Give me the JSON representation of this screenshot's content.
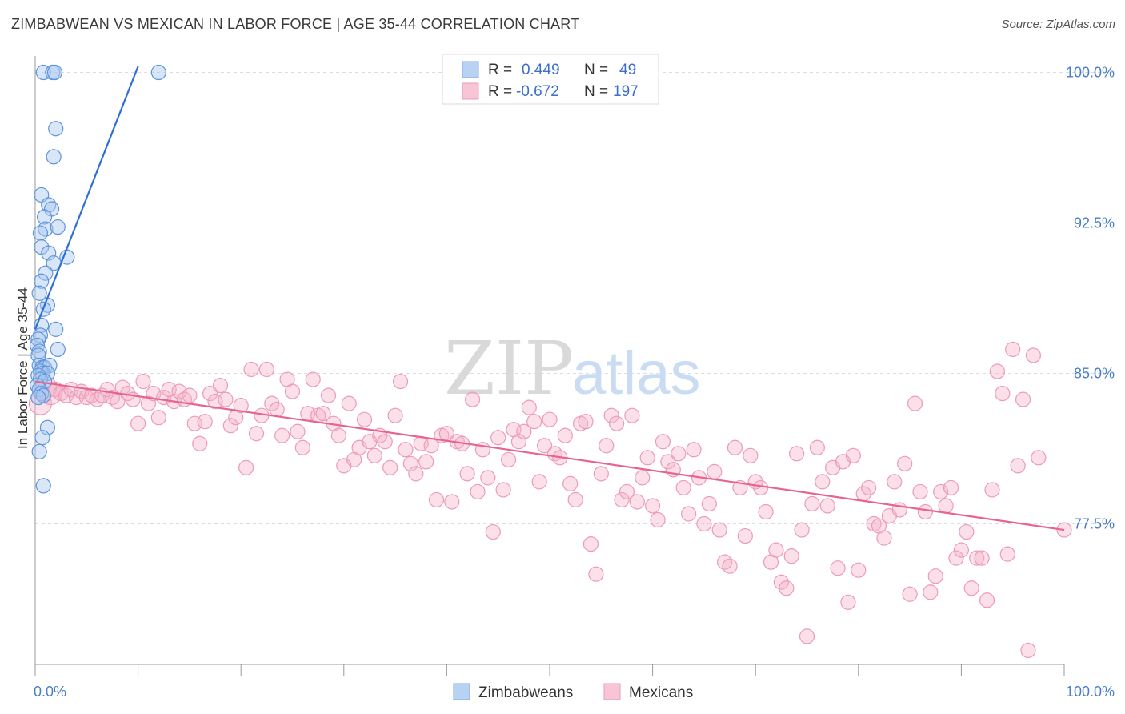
{
  "chart_data": {
    "type": "scatter",
    "title": "ZIMBABWEAN VS MEXICAN IN LABOR FORCE | AGE 35-44 CORRELATION CHART",
    "source": "Source: ZipAtlas.com",
    "ylabel": "In Labor Force | Age 35-44",
    "xlim": [
      0,
      100
    ],
    "ylim": [
      70.5,
      100.5
    ],
    "x_tick_labels": [
      "0.0%",
      "100.0%"
    ],
    "y_ticks": [
      {
        "value": 100.0,
        "label": "100.0%"
      },
      {
        "value": 92.5,
        "label": "92.5%"
      },
      {
        "value": 85.0,
        "label": "85.0%"
      },
      {
        "value": 77.5,
        "label": "77.5%"
      }
    ],
    "watermark": {
      "zip": "ZIP",
      "atlas": "atlas"
    },
    "legend": {
      "r_label": "R =",
      "n_label": "N =",
      "rows": [
        {
          "r": "0.449",
          "n": "49"
        },
        {
          "r": "-0.672",
          "n": "197"
        }
      ]
    },
    "series": [
      {
        "name": "Zimbabweans",
        "color": "#8ab6ec",
        "line_color": "#2f6fd1",
        "trend": {
          "x0": 0.0,
          "y0": 87.2,
          "x1": 10.0,
          "y1": 100.3
        },
        "points": [
          [
            0.8,
            100.0
          ],
          [
            1.7,
            100.0
          ],
          [
            1.9,
            100.0
          ],
          [
            12.0,
            100.0
          ],
          [
            2.0,
            97.2
          ],
          [
            1.8,
            95.8
          ],
          [
            0.6,
            93.9
          ],
          [
            1.3,
            93.4
          ],
          [
            1.6,
            93.2
          ],
          [
            0.9,
            92.8
          ],
          [
            1.0,
            92.2
          ],
          [
            2.2,
            92.3
          ],
          [
            0.5,
            92.0
          ],
          [
            0.6,
            91.3
          ],
          [
            1.3,
            91.0
          ],
          [
            3.1,
            90.8
          ],
          [
            1.8,
            90.5
          ],
          [
            1.0,
            90.0
          ],
          [
            0.6,
            89.6
          ],
          [
            0.4,
            89.0
          ],
          [
            1.2,
            88.4
          ],
          [
            0.8,
            88.2
          ],
          [
            0.6,
            87.4
          ],
          [
            2.0,
            87.2
          ],
          [
            0.5,
            86.9
          ],
          [
            0.3,
            86.7
          ],
          [
            0.2,
            86.4
          ],
          [
            0.4,
            86.1
          ],
          [
            2.2,
            86.2
          ],
          [
            0.3,
            85.9
          ],
          [
            0.4,
            85.4
          ],
          [
            0.7,
            85.3
          ],
          [
            0.9,
            85.3
          ],
          [
            1.4,
            85.4
          ],
          [
            0.5,
            85.1
          ],
          [
            0.7,
            85.0
          ],
          [
            1.2,
            85.0
          ],
          [
            0.3,
            84.9
          ],
          [
            0.5,
            84.7
          ],
          [
            0.9,
            84.6
          ],
          [
            0.2,
            84.4
          ],
          [
            0.4,
            84.2
          ],
          [
            0.6,
            84.0
          ],
          [
            0.8,
            83.9
          ],
          [
            0.3,
            83.8
          ],
          [
            1.2,
            82.3
          ],
          [
            0.7,
            81.8
          ],
          [
            0.4,
            81.1
          ],
          [
            0.8,
            79.4
          ]
        ]
      },
      {
        "name": "Mexicans",
        "color": "#f2a6bf",
        "line_color": "#e8648e",
        "trend": {
          "x0": 0.0,
          "y0": 84.6,
          "x1": 100.0,
          "y1": 77.2
        },
        "points": [
          [
            0.5,
            83.5
          ],
          [
            1.0,
            84.3
          ],
          [
            1.5,
            84.0
          ],
          [
            2.0,
            84.2
          ],
          [
            2.5,
            84.0
          ],
          [
            3.0,
            83.9
          ],
          [
            3.5,
            84.2
          ],
          [
            4.0,
            83.8
          ],
          [
            4.5,
            84.1
          ],
          [
            5.0,
            83.8
          ],
          [
            5.5,
            83.9
          ],
          [
            6.0,
            83.7
          ],
          [
            6.5,
            83.9
          ],
          [
            7.0,
            84.2
          ],
          [
            7.5,
            83.8
          ],
          [
            8.0,
            83.6
          ],
          [
            8.5,
            84.3
          ],
          [
            9.0,
            84.0
          ],
          [
            9.5,
            83.7
          ],
          [
            10.0,
            82.5
          ],
          [
            10.5,
            84.6
          ],
          [
            11.0,
            83.5
          ],
          [
            11.5,
            84.0
          ],
          [
            12.0,
            82.8
          ],
          [
            12.5,
            83.8
          ],
          [
            13.0,
            84.2
          ],
          [
            13.5,
            83.6
          ],
          [
            14.0,
            84.1
          ],
          [
            14.5,
            83.7
          ],
          [
            15.0,
            83.9
          ],
          [
            15.5,
            82.5
          ],
          [
            16.0,
            81.5
          ],
          [
            16.5,
            82.6
          ],
          [
            17.0,
            84.0
          ],
          [
            17.5,
            83.6
          ],
          [
            18.0,
            84.4
          ],
          [
            18.5,
            83.7
          ],
          [
            19.0,
            82.4
          ],
          [
            19.5,
            82.8
          ],
          [
            20.0,
            83.4
          ],
          [
            20.5,
            80.3
          ],
          [
            21.0,
            85.2
          ],
          [
            21.5,
            82.0
          ],
          [
            22.0,
            82.9
          ],
          [
            22.5,
            85.2
          ],
          [
            23.0,
            83.5
          ],
          [
            23.5,
            83.2
          ],
          [
            24.0,
            81.9
          ],
          [
            24.5,
            84.7
          ],
          [
            25.0,
            84.1
          ],
          [
            25.5,
            82.1
          ],
          [
            26.0,
            81.3
          ],
          [
            26.5,
            83.0
          ],
          [
            27.0,
            84.7
          ],
          [
            27.5,
            82.9
          ],
          [
            28.0,
            83.0
          ],
          [
            28.5,
            83.9
          ],
          [
            29.0,
            82.5
          ],
          [
            29.5,
            81.9
          ],
          [
            30.0,
            80.4
          ],
          [
            30.5,
            83.5
          ],
          [
            31.0,
            80.7
          ],
          [
            31.5,
            81.3
          ],
          [
            32.0,
            82.7
          ],
          [
            32.5,
            81.6
          ],
          [
            33.0,
            80.9
          ],
          [
            33.5,
            81.9
          ],
          [
            34.0,
            81.6
          ],
          [
            34.5,
            80.3
          ],
          [
            35.0,
            82.9
          ],
          [
            35.5,
            84.6
          ],
          [
            36.0,
            81.2
          ],
          [
            36.5,
            80.5
          ],
          [
            37.0,
            80.0
          ],
          [
            37.5,
            81.5
          ],
          [
            38.0,
            80.6
          ],
          [
            38.5,
            81.4
          ],
          [
            39.0,
            78.7
          ],
          [
            39.5,
            81.9
          ],
          [
            40.0,
            82.0
          ],
          [
            40.5,
            78.6
          ],
          [
            41.0,
            81.6
          ],
          [
            41.5,
            81.5
          ],
          [
            42.0,
            80.0
          ],
          [
            42.5,
            83.7
          ],
          [
            43.0,
            79.1
          ],
          [
            43.5,
            81.2
          ],
          [
            44.0,
            79.8
          ],
          [
            44.5,
            77.1
          ],
          [
            45.0,
            81.8
          ],
          [
            45.5,
            79.2
          ],
          [
            46.0,
            80.7
          ],
          [
            46.5,
            82.2
          ],
          [
            47.0,
            81.6
          ],
          [
            47.5,
            82.1
          ],
          [
            48.0,
            83.3
          ],
          [
            48.5,
            82.6
          ],
          [
            49.0,
            79.6
          ],
          [
            49.5,
            81.4
          ],
          [
            50.0,
            82.7
          ],
          [
            50.5,
            81.0
          ],
          [
            51.0,
            80.8
          ],
          [
            51.5,
            81.9
          ],
          [
            52.0,
            79.5
          ],
          [
            52.5,
            78.7
          ],
          [
            53.0,
            82.5
          ],
          [
            53.5,
            82.6
          ],
          [
            54.0,
            76.5
          ],
          [
            54.5,
            75.0
          ],
          [
            55.0,
            80.0
          ],
          [
            55.5,
            81.4
          ],
          [
            56.0,
            82.9
          ],
          [
            56.5,
            82.5
          ],
          [
            57.0,
            78.7
          ],
          [
            57.5,
            79.1
          ],
          [
            58.0,
            82.9
          ],
          [
            58.5,
            78.6
          ],
          [
            59.0,
            79.8
          ],
          [
            59.5,
            80.8
          ],
          [
            60.0,
            78.4
          ],
          [
            60.5,
            77.7
          ],
          [
            61.0,
            81.6
          ],
          [
            61.5,
            80.6
          ],
          [
            62.0,
            80.2
          ],
          [
            62.5,
            81.0
          ],
          [
            63.0,
            79.3
          ],
          [
            63.5,
            78.0
          ],
          [
            64.0,
            81.2
          ],
          [
            64.5,
            79.8
          ],
          [
            65.0,
            77.5
          ],
          [
            65.5,
            78.5
          ],
          [
            66.0,
            80.1
          ],
          [
            66.5,
            77.2
          ],
          [
            67.0,
            75.6
          ],
          [
            67.5,
            75.4
          ],
          [
            68.0,
            81.3
          ],
          [
            68.5,
            79.3
          ],
          [
            69.0,
            76.9
          ],
          [
            69.5,
            80.9
          ],
          [
            70.0,
            79.6
          ],
          [
            70.5,
            79.3
          ],
          [
            71.0,
            78.1
          ],
          [
            71.5,
            75.6
          ],
          [
            72.0,
            76.2
          ],
          [
            72.5,
            74.6
          ],
          [
            73.0,
            74.3
          ],
          [
            73.5,
            75.9
          ],
          [
            74.0,
            81.0
          ],
          [
            74.5,
            77.2
          ],
          [
            75.0,
            71.9
          ],
          [
            75.5,
            78.5
          ],
          [
            76.0,
            81.3
          ],
          [
            76.5,
            79.6
          ],
          [
            77.0,
            78.4
          ],
          [
            77.5,
            80.3
          ],
          [
            78.0,
            75.3
          ],
          [
            78.5,
            80.6
          ],
          [
            79.0,
            73.6
          ],
          [
            79.5,
            80.9
          ],
          [
            80.0,
            75.2
          ],
          [
            80.5,
            79.0
          ],
          [
            81.0,
            79.3
          ],
          [
            81.5,
            77.5
          ],
          [
            82.0,
            77.4
          ],
          [
            82.5,
            76.8
          ],
          [
            83.0,
            77.9
          ],
          [
            83.5,
            79.6
          ],
          [
            84.0,
            78.2
          ],
          [
            84.5,
            80.5
          ],
          [
            85.0,
            74.0
          ],
          [
            85.5,
            83.5
          ],
          [
            86.0,
            79.1
          ],
          [
            86.5,
            78.1
          ],
          [
            87.0,
            74.1
          ],
          [
            87.5,
            74.9
          ],
          [
            88.0,
            79.1
          ],
          [
            88.5,
            78.4
          ],
          [
            89.0,
            79.3
          ],
          [
            89.5,
            75.8
          ],
          [
            90.0,
            76.2
          ],
          [
            90.5,
            77.1
          ],
          [
            91.0,
            74.3
          ],
          [
            91.5,
            75.8
          ],
          [
            92.0,
            75.8
          ],
          [
            92.5,
            73.7
          ],
          [
            93.0,
            79.2
          ],
          [
            93.5,
            85.1
          ],
          [
            94.0,
            84.0
          ],
          [
            94.5,
            76.0
          ],
          [
            95.0,
            86.2
          ],
          [
            95.5,
            80.4
          ],
          [
            96.0,
            83.7
          ],
          [
            96.5,
            71.2
          ],
          [
            97.0,
            85.9
          ],
          [
            97.5,
            80.8
          ],
          [
            100.0,
            77.2
          ]
        ]
      }
    ]
  }
}
